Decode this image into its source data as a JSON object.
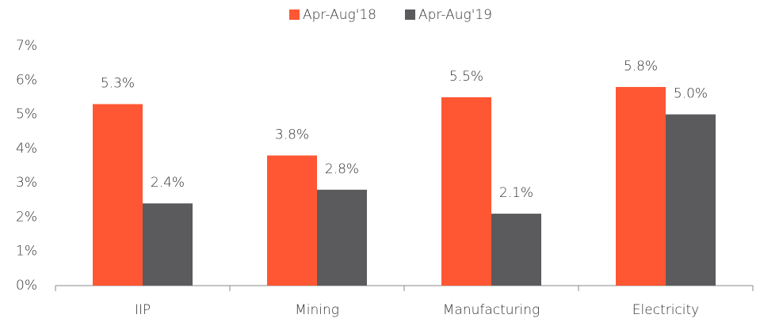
{
  "chart_data": {
    "type": "bar",
    "categories": [
      "IIP",
      "Mining",
      "Manufacturing",
      "Electricity"
    ],
    "series": [
      {
        "name": "Apr-Aug'18",
        "color": "#ff5733",
        "values": [
          5.3,
          3.8,
          5.5,
          5.8
        ],
        "value_labels": [
          "5.3%",
          "3.8%",
          "5.5%",
          "5.8%"
        ]
      },
      {
        "name": "Apr-Aug'19",
        "color": "#5b5b5d",
        "values": [
          2.4,
          2.8,
          2.1,
          5.0
        ],
        "value_labels": [
          "2.4%",
          "2.8%",
          "2.1%",
          "5.0%"
        ]
      }
    ],
    "ylim": [
      0,
      7
    ],
    "yticks": [
      {
        "value": 0,
        "label": "0%"
      },
      {
        "value": 1,
        "label": "1%"
      },
      {
        "value": 2,
        "label": "2%"
      },
      {
        "value": 3,
        "label": "3%"
      },
      {
        "value": 4,
        "label": "4%"
      },
      {
        "value": 5,
        "label": "5%"
      },
      {
        "value": 6,
        "label": "6%"
      },
      {
        "value": 7,
        "label": "7%"
      }
    ],
    "grid": false,
    "legend": "top"
  }
}
